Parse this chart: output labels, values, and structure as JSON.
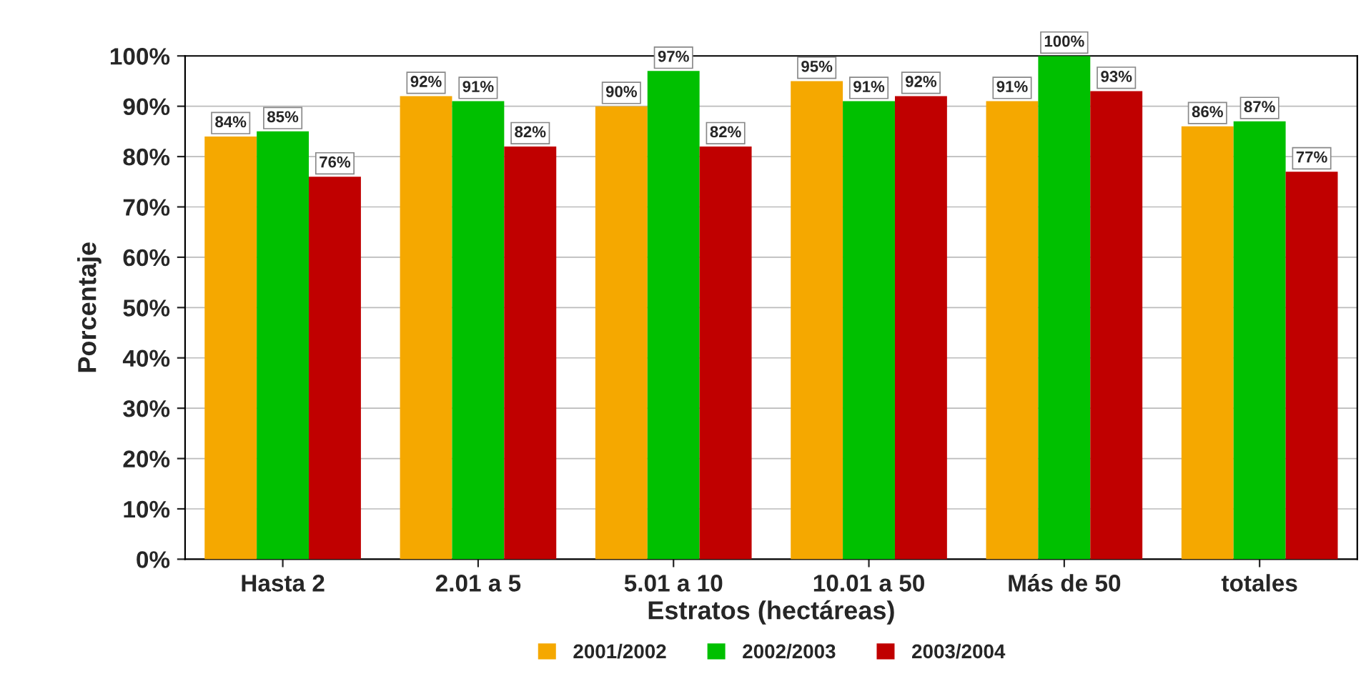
{
  "chart_data": {
    "type": "bar",
    "xlabel": "Estratos (hectáreas)",
    "ylabel": "Porcentaje",
    "categories": [
      "Hasta 2",
      "2.01 a 5",
      "5.01 a 10",
      "10.01 a 50",
      "Más de 50",
      "totales"
    ],
    "series": [
      {
        "name": "2001/2002",
        "color": "#f5a800",
        "values": [
          84,
          92,
          90,
          95,
          91,
          86
        ],
        "value_labels": [
          "84%",
          "92%",
          "90%",
          "95%",
          "91%",
          "86%"
        ]
      },
      {
        "name": "2002/2003",
        "color": "#00c000",
        "values": [
          85,
          91,
          97,
          91,
          100,
          87
        ],
        "value_labels": [
          "85%",
          "91%",
          "97%",
          "91%",
          "100%",
          "87%"
        ]
      },
      {
        "name": "2003/2004",
        "color": "#c00000",
        "values": [
          76,
          82,
          82,
          92,
          93,
          77
        ],
        "value_labels": [
          "76%",
          "82%",
          "82%",
          "92%",
          "93%",
          "77%"
        ]
      }
    ],
    "ylim": [
      0,
      100
    ],
    "yticks": [
      {
        "value": 0,
        "label": "0%"
      },
      {
        "value": 10,
        "label": "10%"
      },
      {
        "value": 20,
        "label": "20%"
      },
      {
        "value": 30,
        "label": "30%"
      },
      {
        "value": 40,
        "label": "40%"
      },
      {
        "value": 50,
        "label": "50%"
      },
      {
        "value": 60,
        "label": "60%"
      },
      {
        "value": 70,
        "label": "70%"
      },
      {
        "value": 80,
        "label": "80%"
      },
      {
        "value": 90,
        "label": "90%"
      },
      {
        "value": 100,
        "label": "100%"
      }
    ],
    "grid": "y",
    "legend": "bottom"
  }
}
